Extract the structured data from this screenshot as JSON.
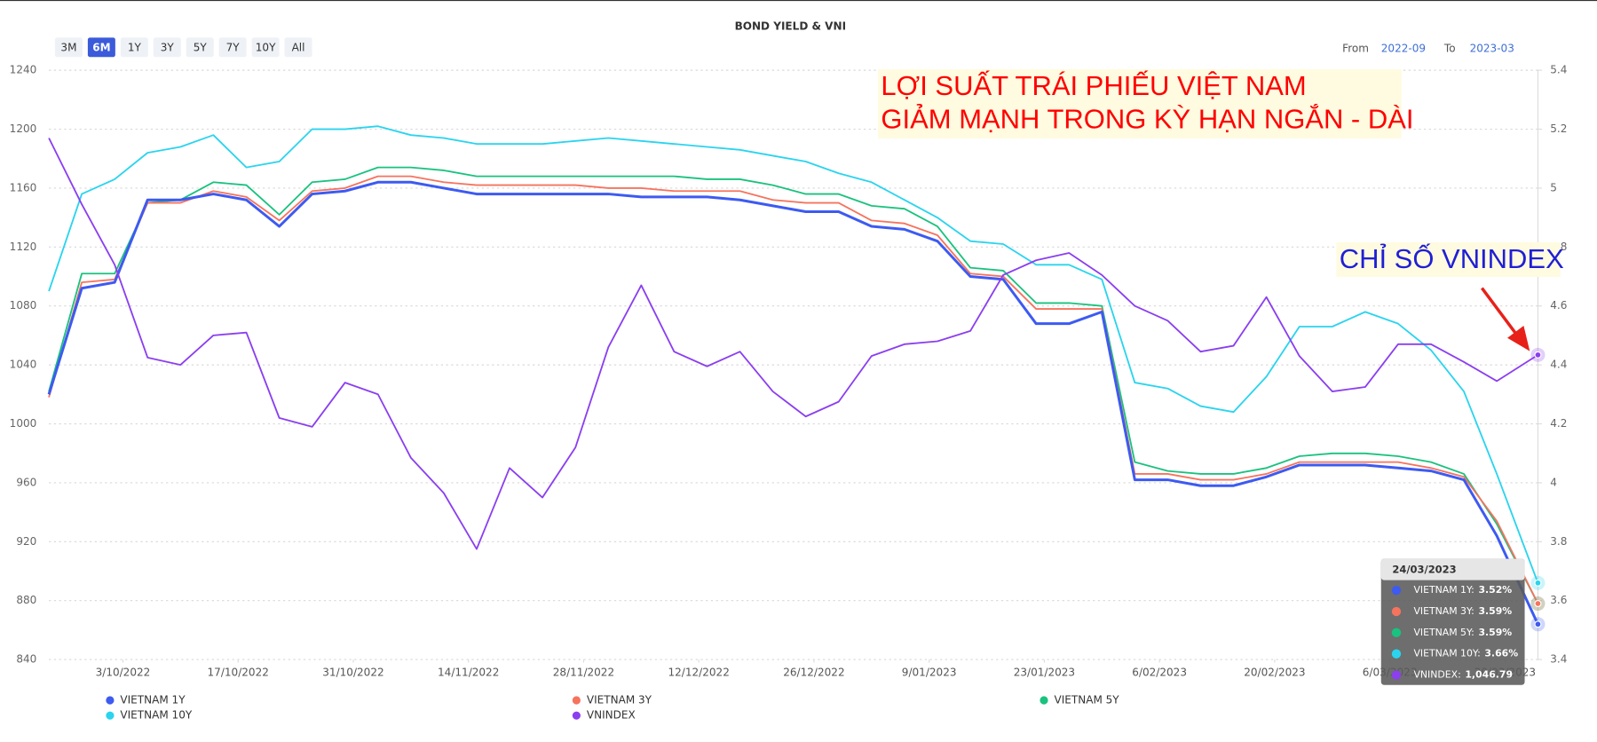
{
  "chart_data": {
    "type": "line",
    "title": "BOND YIELD & VNI",
    "range_buttons": [
      "3M",
      "6M",
      "1Y",
      "3Y",
      "5Y",
      "7Y",
      "10Y",
      "All"
    ],
    "range_selected": "6M",
    "from_label": "From",
    "from_value": "2022-09",
    "to_label": "To",
    "to_value": "2023-03",
    "annotations": [
      "LỢI SUẤT TRÁI PHIẾU VIỆT NAM",
      "GIẢM MẠNH TRONG KỲ HẠN NGẮN - DÀI",
      "CHỈ SỐ VNINDEX"
    ],
    "x": [
      "2022-09-24",
      "2022-09-28",
      "2022-10-02",
      "2022-10-06",
      "2022-10-10",
      "2022-10-14",
      "2022-10-18",
      "2022-10-22",
      "2022-10-26",
      "2022-10-30",
      "2022-11-03",
      "2022-11-07",
      "2022-11-11",
      "2022-11-15",
      "2022-11-19",
      "2022-11-23",
      "2022-11-27",
      "2022-12-01",
      "2022-12-05",
      "2022-12-09",
      "2022-12-13",
      "2022-12-17",
      "2022-12-21",
      "2022-12-25",
      "2022-12-29",
      "2023-01-02",
      "2023-01-06",
      "2023-01-10",
      "2023-01-14",
      "2023-01-18",
      "2023-01-22",
      "2023-01-26",
      "2023-01-30",
      "2023-02-03",
      "2023-02-07",
      "2023-02-11",
      "2023-02-15",
      "2023-02-19",
      "2023-02-23",
      "2023-02-27",
      "2023-03-03",
      "2023-03-07",
      "2023-03-11",
      "2023-03-15",
      "2023-03-19",
      "2023-03-24"
    ],
    "xlim": [
      "2022-09-24",
      "2023-03-24"
    ],
    "xticks": [
      {
        "value": "2022-10-03",
        "label": "3/10/2022"
      },
      {
        "value": "2022-10-17",
        "label": "17/10/2022"
      },
      {
        "value": "2022-10-31",
        "label": "31/10/2022"
      },
      {
        "value": "2022-11-14",
        "label": "14/11/2022"
      },
      {
        "value": "2022-11-28",
        "label": "28/11/2022"
      },
      {
        "value": "2022-12-12",
        "label": "12/12/2022"
      },
      {
        "value": "2022-12-26",
        "label": "26/12/2022"
      },
      {
        "value": "2023-01-09",
        "label": "9/01/2023"
      },
      {
        "value": "2023-01-23",
        "label": "23/01/2023"
      },
      {
        "value": "2023-02-06",
        "label": "6/02/2023"
      },
      {
        "value": "2023-02-20",
        "label": "20/02/2023"
      },
      {
        "value": "2023-03-06",
        "label": "6/03/2023"
      },
      {
        "value": "2023-03-20",
        "label": "20/03/2023"
      }
    ],
    "ylim": [
      840,
      1240
    ],
    "yticks": [
      840,
      880,
      920,
      960,
      1000,
      1040,
      1080,
      1120,
      1160,
      1200,
      1240
    ],
    "y2lim": [
      3.4,
      5.4
    ],
    "y2ticks": [
      3.4,
      3.6,
      3.8,
      4,
      4.2,
      4.4,
      4.6,
      4.8,
      5,
      5.2,
      5.4
    ],
    "grid": true,
    "series": [
      {
        "name": "VIETNAM 10Y",
        "color": "#2ad4ee",
        "axis": "y2",
        "values": [
          4.65,
          4.98,
          5.03,
          5.12,
          5.14,
          5.18,
          5.07,
          5.09,
          5.2,
          5.2,
          5.21,
          5.18,
          5.17,
          5.15,
          5.15,
          5.15,
          5.16,
          5.17,
          5.16,
          5.15,
          5.14,
          5.13,
          5.11,
          5.09,
          5.05,
          5.02,
          4.96,
          4.9,
          4.82,
          4.81,
          4.74,
          4.74,
          4.69,
          4.34,
          4.32,
          4.26,
          4.24,
          4.36,
          4.53,
          4.53,
          4.58,
          4.54,
          4.45,
          4.31,
          4.03,
          3.66
        ]
      },
      {
        "name": "VIETNAM 5Y",
        "color": "#19c27e",
        "axis": "y2",
        "values": [
          4.31,
          4.71,
          4.71,
          4.95,
          4.96,
          5.02,
          5.01,
          4.91,
          5.02,
          5.03,
          5.07,
          5.07,
          5.06,
          5.04,
          5.04,
          5.04,
          5.04,
          5.04,
          5.04,
          5.04,
          5.03,
          5.03,
          5.01,
          4.98,
          4.98,
          4.94,
          4.93,
          4.87,
          4.73,
          4.72,
          4.61,
          4.61,
          4.6,
          4.07,
          4.04,
          4.03,
          4.03,
          4.05,
          4.09,
          4.1,
          4.1,
          4.09,
          4.07,
          4.03,
          3.86,
          3.59
        ]
      },
      {
        "name": "VIETNAM 3Y",
        "color": "#f6735e",
        "axis": "y2",
        "values": [
          4.29,
          4.68,
          4.69,
          4.95,
          4.95,
          4.99,
          4.97,
          4.89,
          4.99,
          5.0,
          5.04,
          5.04,
          5.02,
          5.01,
          5.01,
          5.01,
          5.01,
          5.0,
          5.0,
          4.99,
          4.99,
          4.99,
          4.96,
          4.95,
          4.95,
          4.89,
          4.88,
          4.84,
          4.71,
          4.7,
          4.59,
          4.59,
          4.59,
          4.03,
          4.03,
          4.01,
          4.01,
          4.03,
          4.07,
          4.07,
          4.07,
          4.07,
          4.05,
          4.02,
          3.87,
          3.59
        ]
      },
      {
        "name": "VIETNAM 1Y",
        "color": "#3d5af1",
        "axis": "y2",
        "values": [
          4.3,
          4.66,
          4.68,
          4.96,
          4.96,
          4.98,
          4.96,
          4.87,
          4.98,
          4.99,
          5.02,
          5.02,
          5.0,
          4.98,
          4.98,
          4.98,
          4.98,
          4.98,
          4.97,
          4.97,
          4.97,
          4.96,
          4.94,
          4.92,
          4.92,
          4.87,
          4.86,
          4.82,
          4.7,
          4.69,
          4.54,
          4.54,
          4.58,
          4.01,
          4.01,
          3.99,
          3.99,
          4.02,
          4.06,
          4.06,
          4.06,
          4.05,
          4.04,
          4.01,
          3.82,
          3.52
        ]
      },
      {
        "name": "VNINDEX",
        "color": "#8b3ff0",
        "axis": "y",
        "values": [
          1194,
          1149,
          1108,
          1045,
          1040,
          1060,
          1062,
          1004,
          998,
          1028,
          1020,
          977,
          953,
          915,
          970,
          950,
          984,
          1052,
          1094,
          1049,
          1039,
          1049,
          1022,
          1005,
          1015,
          1046,
          1054,
          1056,
          1063,
          1101,
          1111,
          1116,
          1101,
          1080,
          1070,
          1049,
          1053,
          1086,
          1046,
          1022,
          1025,
          1054,
          1054,
          1042,
          1029,
          1046.79
        ]
      }
    ],
    "legend_order": [
      "VIETNAM 1Y",
      "VIETNAM 3Y",
      "VIETNAM 5Y",
      "VIETNAM 10Y",
      "VNINDEX"
    ],
    "tooltip": {
      "title": "24/03/2023",
      "items": [
        {
          "label": "VIETNAM 1Y:",
          "text": "3.52%"
        },
        {
          "label": "VIETNAM 3Y:",
          "text": "3.59%"
        },
        {
          "label": "VIETNAM 5Y:",
          "text": "3.59%"
        },
        {
          "label": "VIETNAM 10Y:",
          "text": "3.66%"
        },
        {
          "label": "VNINDEX:",
          "text": "1,046.79"
        }
      ]
    }
  }
}
